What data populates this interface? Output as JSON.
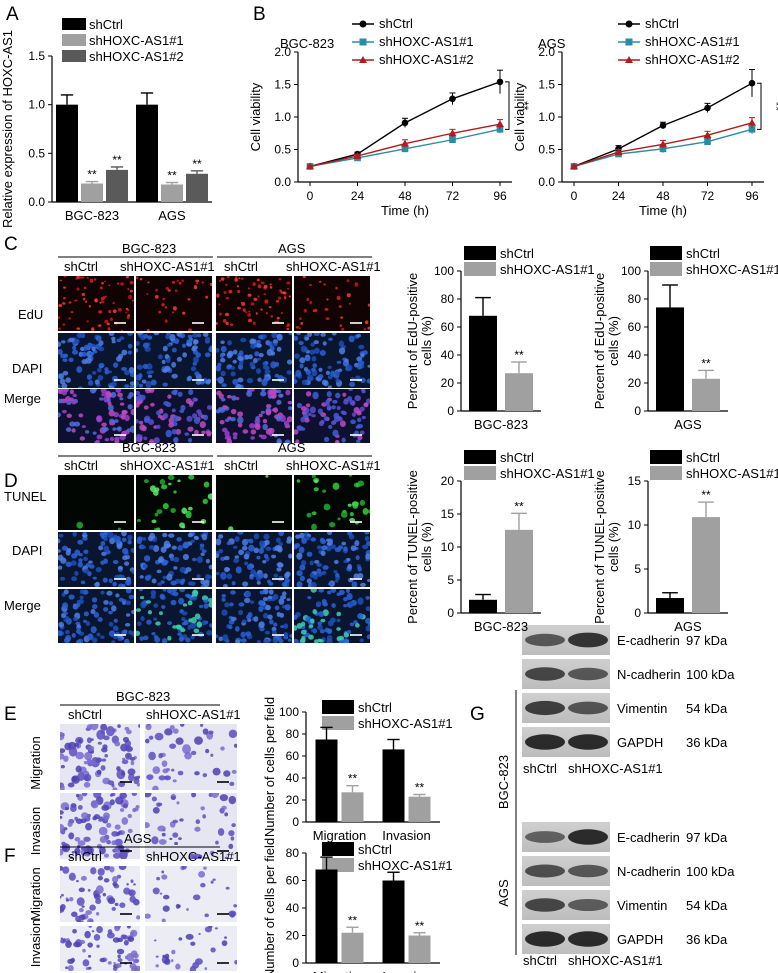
{
  "panel_letters": {
    "A": "A",
    "B": "B",
    "C": "C",
    "D": "D",
    "E": "E",
    "F": "F",
    "G": "G"
  },
  "legend": {
    "ctrl": "shCtrl",
    "kd1": "shHOXC-AS1#1",
    "kd2": "shHOXC-AS1#2"
  },
  "sig": "**",
  "colors": {
    "black": "#000000",
    "gray": "#a0a0a0",
    "dark_gray": "#5a5a5a",
    "teal": "#2a8ca8",
    "red": "#b01c1c"
  },
  "cell_lines": {
    "bgc": "BGC-823",
    "ags": "AGS"
  },
  "micro": {
    "edu": "EdU",
    "dapi": "DAPI",
    "merge": "Merge",
    "tunel": "TUNEL",
    "migration": "Migration",
    "invasion": "Invasion"
  },
  "western": {
    "proteins": [
      {
        "name": "E-cadherin",
        "kda": "97 kDa"
      },
      {
        "name": "N-cadherin",
        "kda": "100 kDa"
      },
      {
        "name": "Vimentin",
        "kda": "54 kDa"
      },
      {
        "name": "GAPDH",
        "kda": "36 kDa"
      }
    ]
  },
  "chart_data": [
    {
      "id": "A",
      "type": "bar",
      "ylabel": "Relative expression of HOXC-AS1",
      "categories": [
        "BGC-823",
        "AGS"
      ],
      "ylim": [
        0,
        1.5
      ],
      "yticks": [
        0.0,
        0.5,
        1.0,
        1.5
      ],
      "series": [
        {
          "name": "shCtrl",
          "values": [
            1.0,
            1.0
          ],
          "errors": [
            0.1,
            0.12
          ]
        },
        {
          "name": "shHOXC-AS1#1",
          "values": [
            0.19,
            0.18
          ],
          "errors": [
            0.02,
            0.02
          ]
        },
        {
          "name": "shHOXC-AS1#2",
          "values": [
            0.33,
            0.29
          ],
          "errors": [
            0.03,
            0.03
          ]
        }
      ]
    },
    {
      "id": "B1",
      "type": "line",
      "title": "BGC-823",
      "xlabel": "Time (h)",
      "ylabel": "Cell viability",
      "x": [
        0,
        24,
        48,
        72,
        96
      ],
      "ylim": [
        0,
        2.0
      ],
      "yticks": [
        0.0,
        0.5,
        1.0,
        1.5,
        2.0
      ],
      "series": [
        {
          "name": "shCtrl",
          "values": [
            0.24,
            0.43,
            0.91,
            1.28,
            1.54
          ],
          "errors": [
            0.02,
            0.03,
            0.07,
            0.09,
            0.18
          ]
        },
        {
          "name": "shHOXC-AS1#1",
          "values": [
            0.24,
            0.37,
            0.51,
            0.65,
            0.81
          ],
          "errors": [
            0.02,
            0.03,
            0.05,
            0.05,
            0.06
          ]
        },
        {
          "name": "shHOXC-AS1#2",
          "values": [
            0.24,
            0.4,
            0.59,
            0.75,
            0.89
          ],
          "errors": [
            0.02,
            0.03,
            0.06,
            0.06,
            0.07
          ]
        }
      ]
    },
    {
      "id": "B2",
      "type": "line",
      "title": "AGS",
      "xlabel": "Time (h)",
      "ylabel": "Cell viability",
      "x": [
        0,
        24,
        48,
        72,
        96
      ],
      "ylim": [
        0,
        2.0
      ],
      "yticks": [
        0.0,
        0.5,
        1.0,
        1.5,
        2.0
      ],
      "series": [
        {
          "name": "shCtrl",
          "values": [
            0.24,
            0.51,
            0.87,
            1.14,
            1.52
          ],
          "errors": [
            0.02,
            0.05,
            0.05,
            0.07,
            0.21
          ]
        },
        {
          "name": "shHOXC-AS1#1",
          "values": [
            0.24,
            0.43,
            0.51,
            0.62,
            0.81
          ],
          "errors": [
            0.02,
            0.04,
            0.06,
            0.05,
            0.07
          ]
        },
        {
          "name": "shHOXC-AS1#2",
          "values": [
            0.24,
            0.46,
            0.58,
            0.72,
            0.91
          ],
          "errors": [
            0.02,
            0.04,
            0.06,
            0.06,
            0.08
          ]
        }
      ]
    },
    {
      "id": "C1",
      "type": "bar",
      "xlabel": "BGC-823",
      "ylabel": "Percent of EdU-positive cells (%)",
      "ylim": [
        0,
        100
      ],
      "yticks": [
        0,
        20,
        40,
        60,
        80,
        100
      ],
      "series": [
        {
          "name": "shCtrl",
          "values": [
            68
          ],
          "errors": [
            13
          ]
        },
        {
          "name": "shHOXC-AS1#1",
          "values": [
            27
          ],
          "errors": [
            8
          ]
        }
      ]
    },
    {
      "id": "C2",
      "type": "bar",
      "xlabel": "AGS",
      "ylabel": "Percent of EdU-positive cells (%)",
      "ylim": [
        0,
        100
      ],
      "yticks": [
        0,
        20,
        40,
        60,
        80,
        100
      ],
      "series": [
        {
          "name": "shCtrl",
          "values": [
            74
          ],
          "errors": [
            16
          ]
        },
        {
          "name": "shHOXC-AS1#1",
          "values": [
            23
          ],
          "errors": [
            6
          ]
        }
      ]
    },
    {
      "id": "D1",
      "type": "bar",
      "xlabel": "BGC-823",
      "ylabel": "Percent of TUNEL-positive cells (%)",
      "ylim": [
        0,
        20
      ],
      "yticks": [
        0,
        5,
        10,
        15,
        20
      ],
      "series": [
        {
          "name": "shCtrl",
          "values": [
            2
          ],
          "errors": [
            0.8
          ]
        },
        {
          "name": "shHOXC-AS1#1",
          "values": [
            12.6
          ],
          "errors": [
            2.5
          ]
        }
      ]
    },
    {
      "id": "D2",
      "type": "bar",
      "xlabel": "AGS",
      "ylabel": "Percent of TUNEL-positive cells (%)",
      "ylim": [
        0,
        15
      ],
      "yticks": [
        0,
        5,
        10,
        15
      ],
      "series": [
        {
          "name": "shCtrl",
          "values": [
            1.7
          ],
          "errors": [
            0.6
          ]
        },
        {
          "name": "shHOXC-AS1#1",
          "values": [
            10.9
          ],
          "errors": [
            1.7
          ]
        }
      ]
    },
    {
      "id": "E",
      "type": "bar",
      "ylabel": "Number of cells per field",
      "categories": [
        "Migration",
        "Invasion"
      ],
      "ylim": [
        0,
        100
      ],
      "yticks": [
        0,
        20,
        40,
        60,
        80,
        100
      ],
      "series": [
        {
          "name": "shCtrl",
          "values": [
            75,
            66
          ],
          "errors": [
            11,
            9
          ]
        },
        {
          "name": "shHOXC-AS1#1",
          "values": [
            27,
            23
          ],
          "errors": [
            6,
            2
          ]
        }
      ]
    },
    {
      "id": "F",
      "type": "bar",
      "ylabel": "Number of cells per field",
      "categories": [
        "Migration",
        "Invasion"
      ],
      "ylim": [
        0,
        80
      ],
      "yticks": [
        0,
        20,
        40,
        60,
        80
      ],
      "series": [
        {
          "name": "shCtrl",
          "values": [
            68,
            60
          ],
          "errors": [
            9,
            6
          ]
        },
        {
          "name": "shHOXC-AS1#1",
          "values": [
            22,
            20
          ],
          "errors": [
            4,
            2
          ]
        }
      ]
    }
  ]
}
